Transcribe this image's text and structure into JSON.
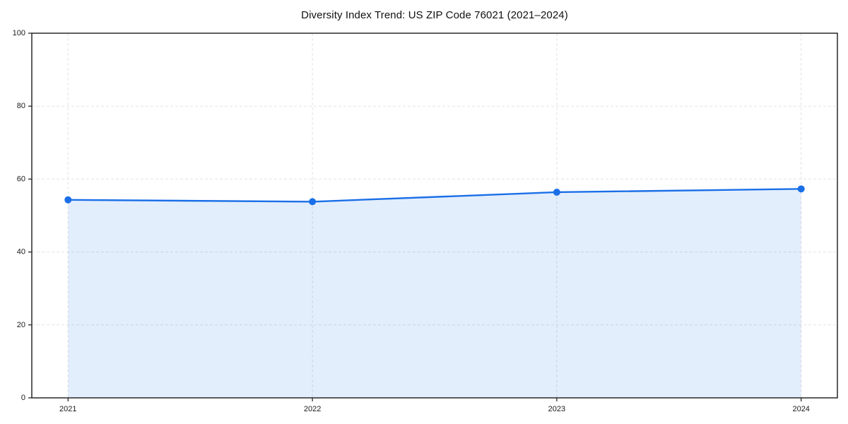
{
  "chart_data": {
    "type": "area",
    "title": "Diversity Index Trend: US ZIP Code 76021 (2021–2024)",
    "x": [
      "2021",
      "2022",
      "2023",
      "2024"
    ],
    "series": [
      {
        "name": "Diversity Index",
        "values": [
          54.3,
          53.8,
          56.4,
          57.3
        ]
      }
    ],
    "xlabel": "",
    "ylabel": "",
    "ylim": [
      0,
      100
    ],
    "yticks": [
      0,
      20,
      40,
      60,
      80,
      100
    ],
    "grid": true,
    "grid_style": "dashed",
    "legend": "none",
    "colors": {
      "line": "#1a6fe8",
      "marker": "#1a6fe8",
      "fill": "rgba(26,115,232,0.12)",
      "grid": "#e2e2e2",
      "frame": "#1a1a1a",
      "tick_label": "#1a1a1a",
      "background": "#ffffff"
    }
  }
}
